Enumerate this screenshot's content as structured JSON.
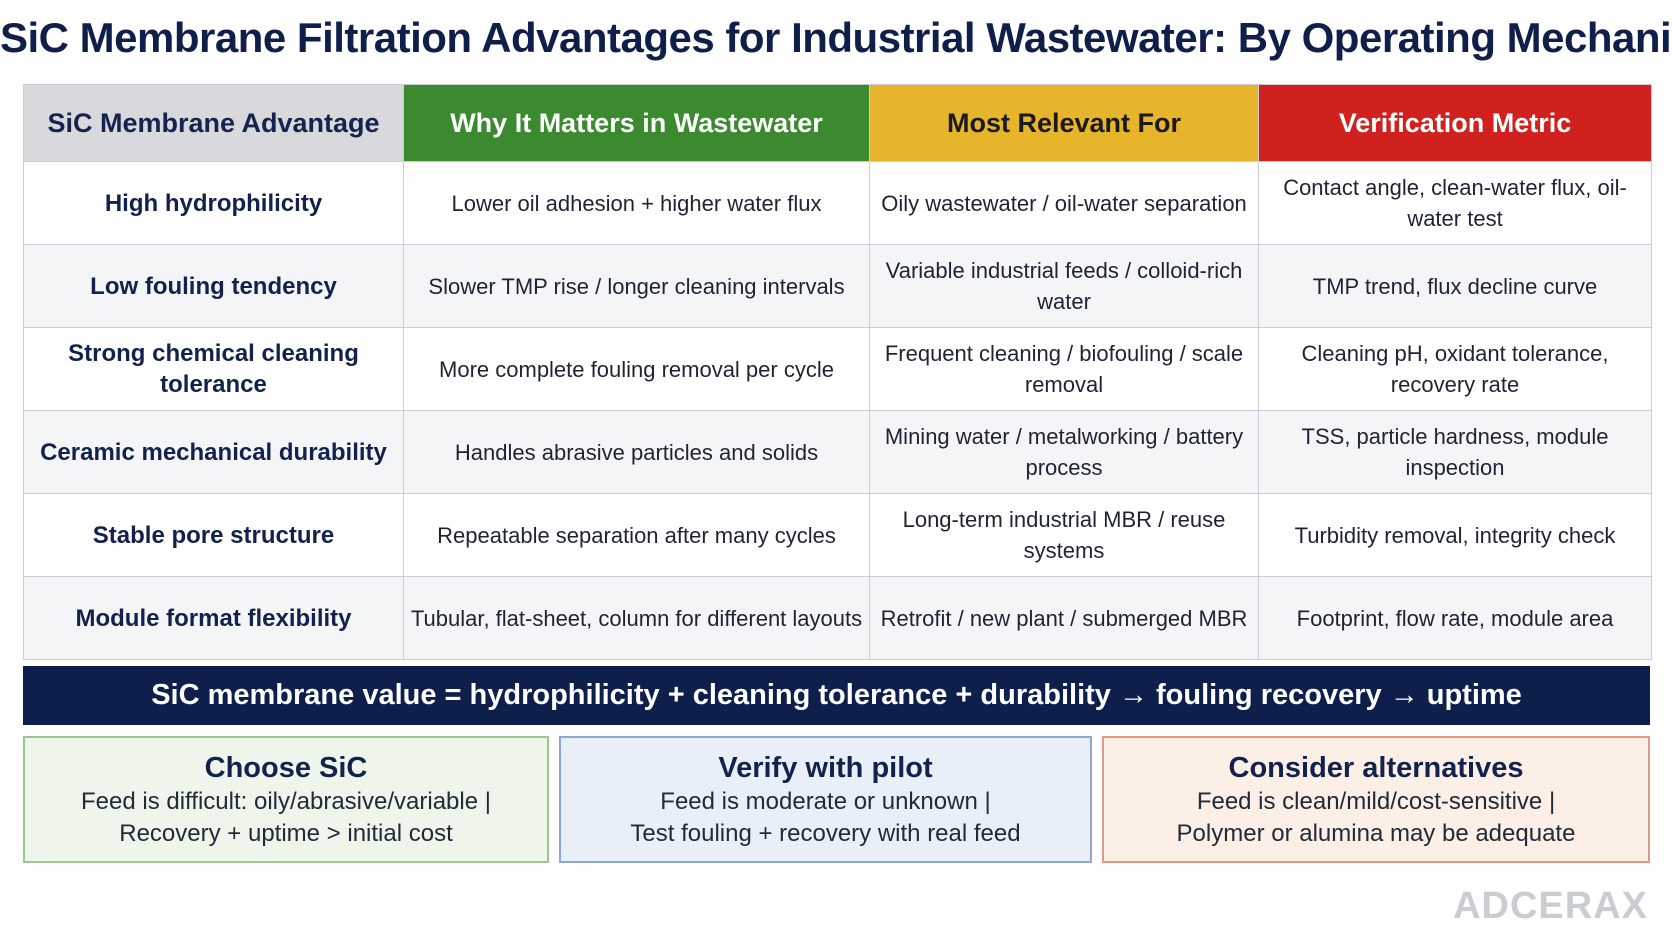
{
  "title": "SiC Membrane Filtration Advantages for Industrial Wastewater: By Operating Mechanism",
  "table": {
    "headers": [
      "SiC Membrane Advantage",
      "Why It Matters in Wastewater",
      "Most Relevant For",
      "Verification Metric"
    ],
    "header_colors": [
      "#d8d9dc",
      "#3b8a2f",
      "#e6b52c",
      "#d0211f"
    ],
    "rows": [
      [
        "High hydrophilicity",
        "Lower oil adhesion + higher water flux",
        "Oily wastewater / oil-water separation",
        "Contact angle, clean-water flux, oil-water test"
      ],
      [
        "Low fouling tendency",
        "Slower TMP rise / longer cleaning intervals",
        "Variable industrial feeds / colloid-rich water",
        "TMP trend, flux decline curve"
      ],
      [
        "Strong chemical cleaning tolerance",
        "More complete fouling removal per cycle",
        "Frequent cleaning / biofouling / scale removal",
        "Cleaning pH, oxidant tolerance, recovery rate"
      ],
      [
        "Ceramic mechanical durability",
        "Handles abrasive particles and solids",
        "Mining water / metalworking / battery process",
        "TSS, particle hardness, module inspection"
      ],
      [
        "Stable pore structure",
        "Repeatable separation after many cycles",
        "Long-term industrial MBR / reuse systems",
        "Turbidity removal, integrity check"
      ],
      [
        "Module format flexibility",
        "Tubular, flat-sheet, column for different layouts",
        "Retrofit / new plant / submerged MBR",
        "Footprint, flow rate, module area"
      ]
    ]
  },
  "formula": "SiC membrane value = hydrophilicity + cleaning tolerance + durability → fouling recovery → uptime",
  "boxes": [
    {
      "title": "Choose SiC",
      "line1": "Feed is difficult: oily/abrasive/variable |",
      "line2": "Recovery + uptime > initial cost"
    },
    {
      "title": "Verify with pilot",
      "line1": "Feed is moderate or unknown |",
      "line2": "Test fouling + recovery with real feed"
    },
    {
      "title": "Consider alternatives",
      "line1": "Feed is clean/mild/cost-sensitive |",
      "line2": "Polymer or alumina may be adequate"
    }
  ],
  "logo": "ADCERAX"
}
